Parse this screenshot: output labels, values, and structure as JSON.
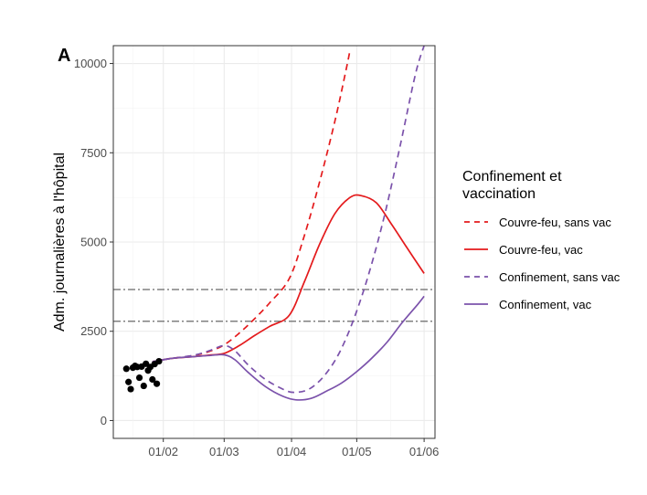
{
  "chart_data": {
    "type": "line",
    "panel_tag": "A",
    "ylabel": "Adm. journalières à l'hôpital",
    "xlabel": "",
    "x_ticks": [
      "01/02",
      "01/03",
      "01/04",
      "01/05",
      "01/06"
    ],
    "x_tick_dates": [
      "2021-02-01",
      "2021-03-01",
      "2021-04-01",
      "2021-05-01",
      "2021-06-01"
    ],
    "xlim": [
      "2021-01-09",
      "2021-06-06"
    ],
    "y_ticks": [
      0,
      2500,
      5000,
      7500,
      10000
    ],
    "y_tick_labels": [
      "0",
      "2500",
      "5000",
      "7500",
      "10000"
    ],
    "ylim": [
      -500,
      10500
    ],
    "grid": true,
    "legend": {
      "title": "Confinement et vaccination",
      "title_lines": [
        "Confinement et",
        "vaccination"
      ],
      "placement": "right",
      "entries": [
        {
          "label": "Couvre-feu, sans vac",
          "color": "#e41a1c",
          "dash": true
        },
        {
          "label": "Couvre-feu, vac",
          "color": "#e41a1c",
          "dash": false
        },
        {
          "label": "Confinement, sans vac",
          "color": "#7b52ab",
          "dash": true
        },
        {
          "label": "Confinement, vac",
          "color": "#7b52ab",
          "dash": false
        }
      ]
    },
    "hlines": [
      {
        "y": 3670,
        "color": "#808080",
        "style": "dashdot"
      },
      {
        "y": 2780,
        "color": "#808080",
        "style": "dashdot"
      }
    ],
    "observed_points": [
      {
        "x": "2021-01-15",
        "y": 1450
      },
      {
        "x": "2021-01-16",
        "y": 1080
      },
      {
        "x": "2021-01-17",
        "y": 880
      },
      {
        "x": "2021-01-18",
        "y": 1480
      },
      {
        "x": "2021-01-19",
        "y": 1530
      },
      {
        "x": "2021-01-20",
        "y": 1500
      },
      {
        "x": "2021-01-21",
        "y": 1200
      },
      {
        "x": "2021-01-22",
        "y": 1510
      },
      {
        "x": "2021-01-23",
        "y": 970
      },
      {
        "x": "2021-01-24",
        "y": 1590
      },
      {
        "x": "2021-01-25",
        "y": 1400
      },
      {
        "x": "2021-01-26",
        "y": 1500
      },
      {
        "x": "2021-01-27",
        "y": 1150
      },
      {
        "x": "2021-01-28",
        "y": 1580
      },
      {
        "x": "2021-01-29",
        "y": 1030
      },
      {
        "x": "2021-01-30",
        "y": 1660
      }
    ],
    "series": [
      {
        "name": "Couvre-feu, sans vac",
        "color": "#e41a1c",
        "dash": true,
        "points": [
          {
            "x": "2021-01-27",
            "y": 1650
          },
          {
            "x": "2021-02-05",
            "y": 1740
          },
          {
            "x": "2021-02-15",
            "y": 1820
          },
          {
            "x": "2021-02-22",
            "y": 1930
          },
          {
            "x": "2021-03-01",
            "y": 2120
          },
          {
            "x": "2021-03-08",
            "y": 2450
          },
          {
            "x": "2021-03-15",
            "y": 2850
          },
          {
            "x": "2021-03-22",
            "y": 3300
          },
          {
            "x": "2021-03-31",
            "y": 3980
          },
          {
            "x": "2021-04-07",
            "y": 5200
          },
          {
            "x": "2021-04-14",
            "y": 6700
          },
          {
            "x": "2021-04-21",
            "y": 8400
          },
          {
            "x": "2021-04-26",
            "y": 9800
          },
          {
            "x": "2021-04-28",
            "y": 10400
          }
        ]
      },
      {
        "name": "Couvre-feu, vac",
        "color": "#e41a1c",
        "dash": false,
        "points": [
          {
            "x": "2021-01-27",
            "y": 1650
          },
          {
            "x": "2021-02-05",
            "y": 1740
          },
          {
            "x": "2021-02-15",
            "y": 1790
          },
          {
            "x": "2021-02-22",
            "y": 1830
          },
          {
            "x": "2021-03-01",
            "y": 1880
          },
          {
            "x": "2021-03-08",
            "y": 2100
          },
          {
            "x": "2021-03-15",
            "y": 2380
          },
          {
            "x": "2021-03-22",
            "y": 2640
          },
          {
            "x": "2021-03-31",
            "y": 2950
          },
          {
            "x": "2021-04-07",
            "y": 3900
          },
          {
            "x": "2021-04-14",
            "y": 4950
          },
          {
            "x": "2021-04-21",
            "y": 5800
          },
          {
            "x": "2021-04-28",
            "y": 6250
          },
          {
            "x": "2021-05-03",
            "y": 6300
          },
          {
            "x": "2021-05-10",
            "y": 6100
          },
          {
            "x": "2021-05-17",
            "y": 5500
          },
          {
            "x": "2021-05-24",
            "y": 4850
          },
          {
            "x": "2021-06-01",
            "y": 4120
          }
        ]
      },
      {
        "name": "Confinement, sans vac",
        "color": "#7b52ab",
        "dash": true,
        "points": [
          {
            "x": "2021-01-27",
            "y": 1650
          },
          {
            "x": "2021-02-05",
            "y": 1740
          },
          {
            "x": "2021-02-15",
            "y": 1830
          },
          {
            "x": "2021-02-22",
            "y": 1950
          },
          {
            "x": "2021-03-01",
            "y": 2100
          },
          {
            "x": "2021-03-06",
            "y": 1950
          },
          {
            "x": "2021-03-12",
            "y": 1560
          },
          {
            "x": "2021-03-20",
            "y": 1150
          },
          {
            "x": "2021-03-28",
            "y": 880
          },
          {
            "x": "2021-04-02",
            "y": 790
          },
          {
            "x": "2021-04-09",
            "y": 880
          },
          {
            "x": "2021-04-16",
            "y": 1250
          },
          {
            "x": "2021-04-23",
            "y": 1900
          },
          {
            "x": "2021-04-30",
            "y": 2900
          },
          {
            "x": "2021-05-07",
            "y": 4200
          },
          {
            "x": "2021-05-14",
            "y": 5800
          },
          {
            "x": "2021-05-21",
            "y": 7700
          },
          {
            "x": "2021-05-28",
            "y": 9700
          },
          {
            "x": "2021-06-01",
            "y": 10500
          }
        ]
      },
      {
        "name": "Confinement, vac",
        "color": "#7b52ab",
        "dash": false,
        "points": [
          {
            "x": "2021-01-27",
            "y": 1650
          },
          {
            "x": "2021-02-05",
            "y": 1740
          },
          {
            "x": "2021-02-15",
            "y": 1790
          },
          {
            "x": "2021-02-22",
            "y": 1820
          },
          {
            "x": "2021-03-01",
            "y": 1840
          },
          {
            "x": "2021-03-06",
            "y": 1700
          },
          {
            "x": "2021-03-12",
            "y": 1350
          },
          {
            "x": "2021-03-20",
            "y": 950
          },
          {
            "x": "2021-03-28",
            "y": 680
          },
          {
            "x": "2021-04-03",
            "y": 580
          },
          {
            "x": "2021-04-10",
            "y": 620
          },
          {
            "x": "2021-04-17",
            "y": 820
          },
          {
            "x": "2021-04-24",
            "y": 1050
          },
          {
            "x": "2021-05-01",
            "y": 1370
          },
          {
            "x": "2021-05-08",
            "y": 1750
          },
          {
            "x": "2021-05-15",
            "y": 2200
          },
          {
            "x": "2021-05-22",
            "y": 2750
          },
          {
            "x": "2021-05-29",
            "y": 3250
          },
          {
            "x": "2021-06-01",
            "y": 3480
          }
        ]
      }
    ]
  }
}
